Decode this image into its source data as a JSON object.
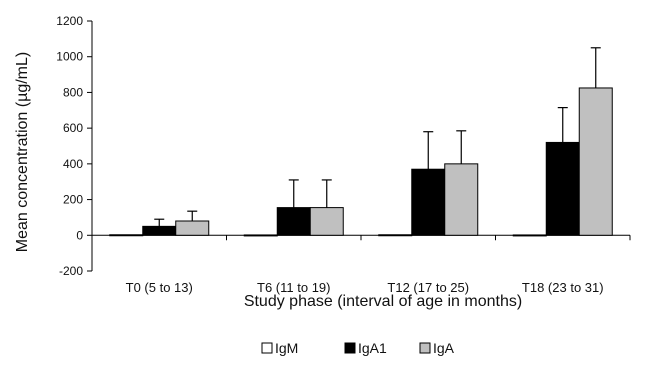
{
  "chart_data": {
    "type": "bar",
    "title": "",
    "xlabel": "Study phase (interval of age in months)",
    "ylabel": "Mean concentration (µg/mL)",
    "ylim": [
      -200,
      1200
    ],
    "yticks": [
      -200,
      0,
      200,
      400,
      600,
      800,
      1000,
      1200
    ],
    "categories": [
      "T0 (5 to 13)",
      "T6 (11 to 19)",
      "T12 (17 to 25)",
      "T18 (23 to 31)"
    ],
    "series": [
      {
        "name": "IgM",
        "color": "#ffffff",
        "values": [
          3,
          2,
          3,
          2
        ],
        "error_upper": [
          3,
          2,
          3,
          2
        ]
      },
      {
        "name": "IgA1",
        "color": "#000000",
        "values": [
          50,
          155,
          370,
          520
        ],
        "error_upper": [
          90,
          310,
          580,
          715
        ]
      },
      {
        "name": "IgA",
        "color": "#c0c0c0",
        "values": [
          80,
          155,
          400,
          825
        ],
        "error_upper": [
          135,
          310,
          585,
          1050
        ]
      }
    ],
    "grid": false,
    "legend_position": "bottom"
  }
}
